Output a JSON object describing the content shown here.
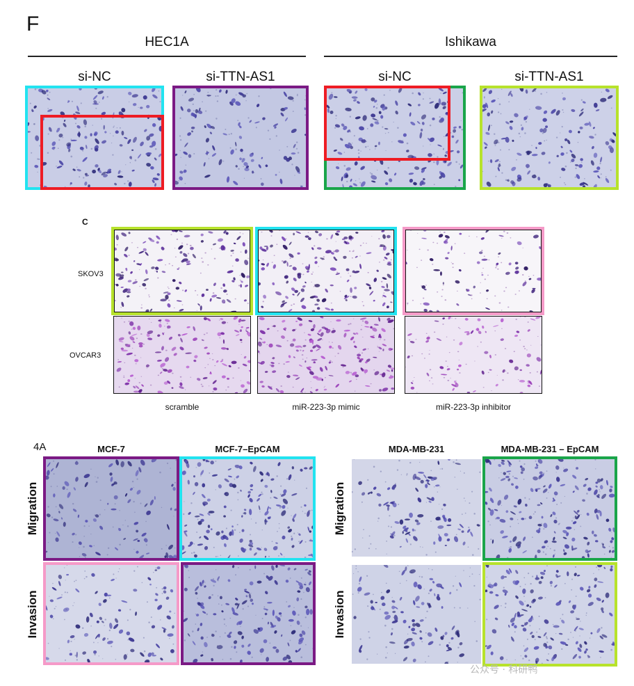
{
  "colors": {
    "cyan": "#22e3f0",
    "red": "#ee1c24",
    "purple": "#7b1a84",
    "green": "#1aa54a",
    "lime": "#b7e22c",
    "pink": "#f59ac8",
    "black": "#111111"
  },
  "panelF": {
    "letter": "F",
    "groups": [
      {
        "name": "HEC1A",
        "conditions": [
          "si-NC",
          "si-TTN-AS1"
        ]
      },
      {
        "name": "Ishikawa",
        "conditions": [
          "si-NC",
          "si-TTN-AS1"
        ]
      }
    ]
  },
  "panelC": {
    "letter": "C",
    "rows": [
      "SKOV3",
      "OVCAR3"
    ],
    "columns": [
      "scramble",
      "miR-223-3p mimic",
      "miR-223-3p inhibitor"
    ]
  },
  "panel4A": {
    "letter": "4A",
    "left": {
      "columns": [
        "MCF-7",
        "MCF-7–EpCAM"
      ]
    },
    "right": {
      "columns": [
        "MDA-MB-231",
        "MDA-MB-231 – EpCAM"
      ]
    },
    "rows": [
      "Migration",
      "Invasion"
    ]
  },
  "watermark": "公众号 · 科研鸭"
}
